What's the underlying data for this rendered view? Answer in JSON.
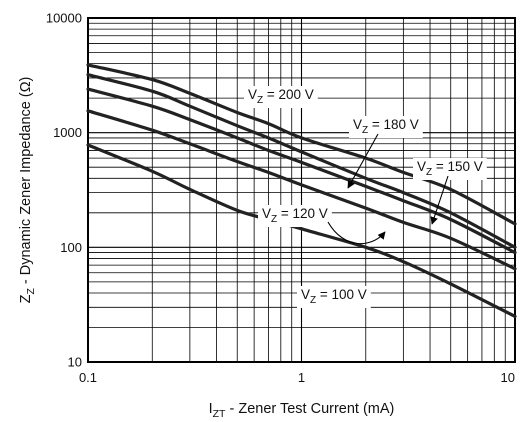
{
  "chart_data": {
    "type": "line",
    "xscale": "log",
    "yscale": "log",
    "xlim": [
      0.1,
      10
    ],
    "ylim": [
      10,
      10000
    ],
    "grid": true,
    "title": "",
    "xlabel": {
      "main": "I",
      "sub": "ZT",
      "rest": " - Zener Test Current (mA)"
    },
    "ylabel": {
      "main": "Z",
      "sub": "Z",
      "rest": " - Dynamic Zener Impedance (Ω)"
    },
    "x_ticks": [
      {
        "value": 0.1,
        "label": "0.1"
      },
      {
        "value": 1,
        "label": "1"
      },
      {
        "value": 10,
        "label": "10"
      }
    ],
    "y_ticks": [
      {
        "value": 10,
        "label": "10"
      },
      {
        "value": 100,
        "label": "100"
      },
      {
        "value": 1000,
        "label": "1000"
      },
      {
        "value": 10000,
        "label": "10000"
      }
    ],
    "series": [
      {
        "name": "200 V",
        "label": {
          "main": "V",
          "sub": "Z",
          "rest": " = 200 V"
        },
        "x": [
          0.1,
          0.2,
          0.3,
          0.5,
          0.7,
          1,
          2,
          3,
          5,
          10
        ],
        "y": [
          3900,
          2900,
          2200,
          1500,
          1200,
          900,
          600,
          450,
          320,
          160
        ]
      },
      {
        "name": "180 V",
        "label": {
          "main": "V",
          "sub": "Z",
          "rest": " = 180 V"
        },
        "x": [
          0.1,
          0.2,
          0.3,
          0.5,
          0.7,
          1,
          2,
          3,
          5,
          10
        ],
        "y": [
          3200,
          2300,
          1700,
          1150,
          900,
          680,
          400,
          300,
          200,
          100
        ]
      },
      {
        "name": "150 V",
        "label": {
          "main": "V",
          "sub": "Z",
          "rest": " = 150 V"
        },
        "x": [
          0.1,
          0.2,
          0.3,
          0.5,
          0.7,
          1,
          2,
          3,
          5,
          10
        ],
        "y": [
          2400,
          1700,
          1300,
          900,
          700,
          550,
          340,
          255,
          175,
          90
        ]
      },
      {
        "name": "120 V",
        "label": {
          "main": "V",
          "sub": "Z",
          "rest": " = 120 V"
        },
        "x": [
          0.1,
          0.2,
          0.3,
          0.5,
          0.7,
          1,
          2,
          3,
          5,
          10
        ],
        "y": [
          1550,
          1050,
          800,
          560,
          450,
          350,
          220,
          165,
          120,
          65
        ]
      },
      {
        "name": "100 V",
        "label": {
          "main": "V",
          "sub": "Z",
          "rest": " = 100 V"
        },
        "x": [
          0.1,
          0.2,
          0.3,
          0.5,
          0.7,
          1,
          2,
          3,
          5,
          10
        ],
        "y": [
          780,
          460,
          320,
          210,
          175,
          145,
          100,
          75,
          48,
          25
        ]
      }
    ]
  }
}
